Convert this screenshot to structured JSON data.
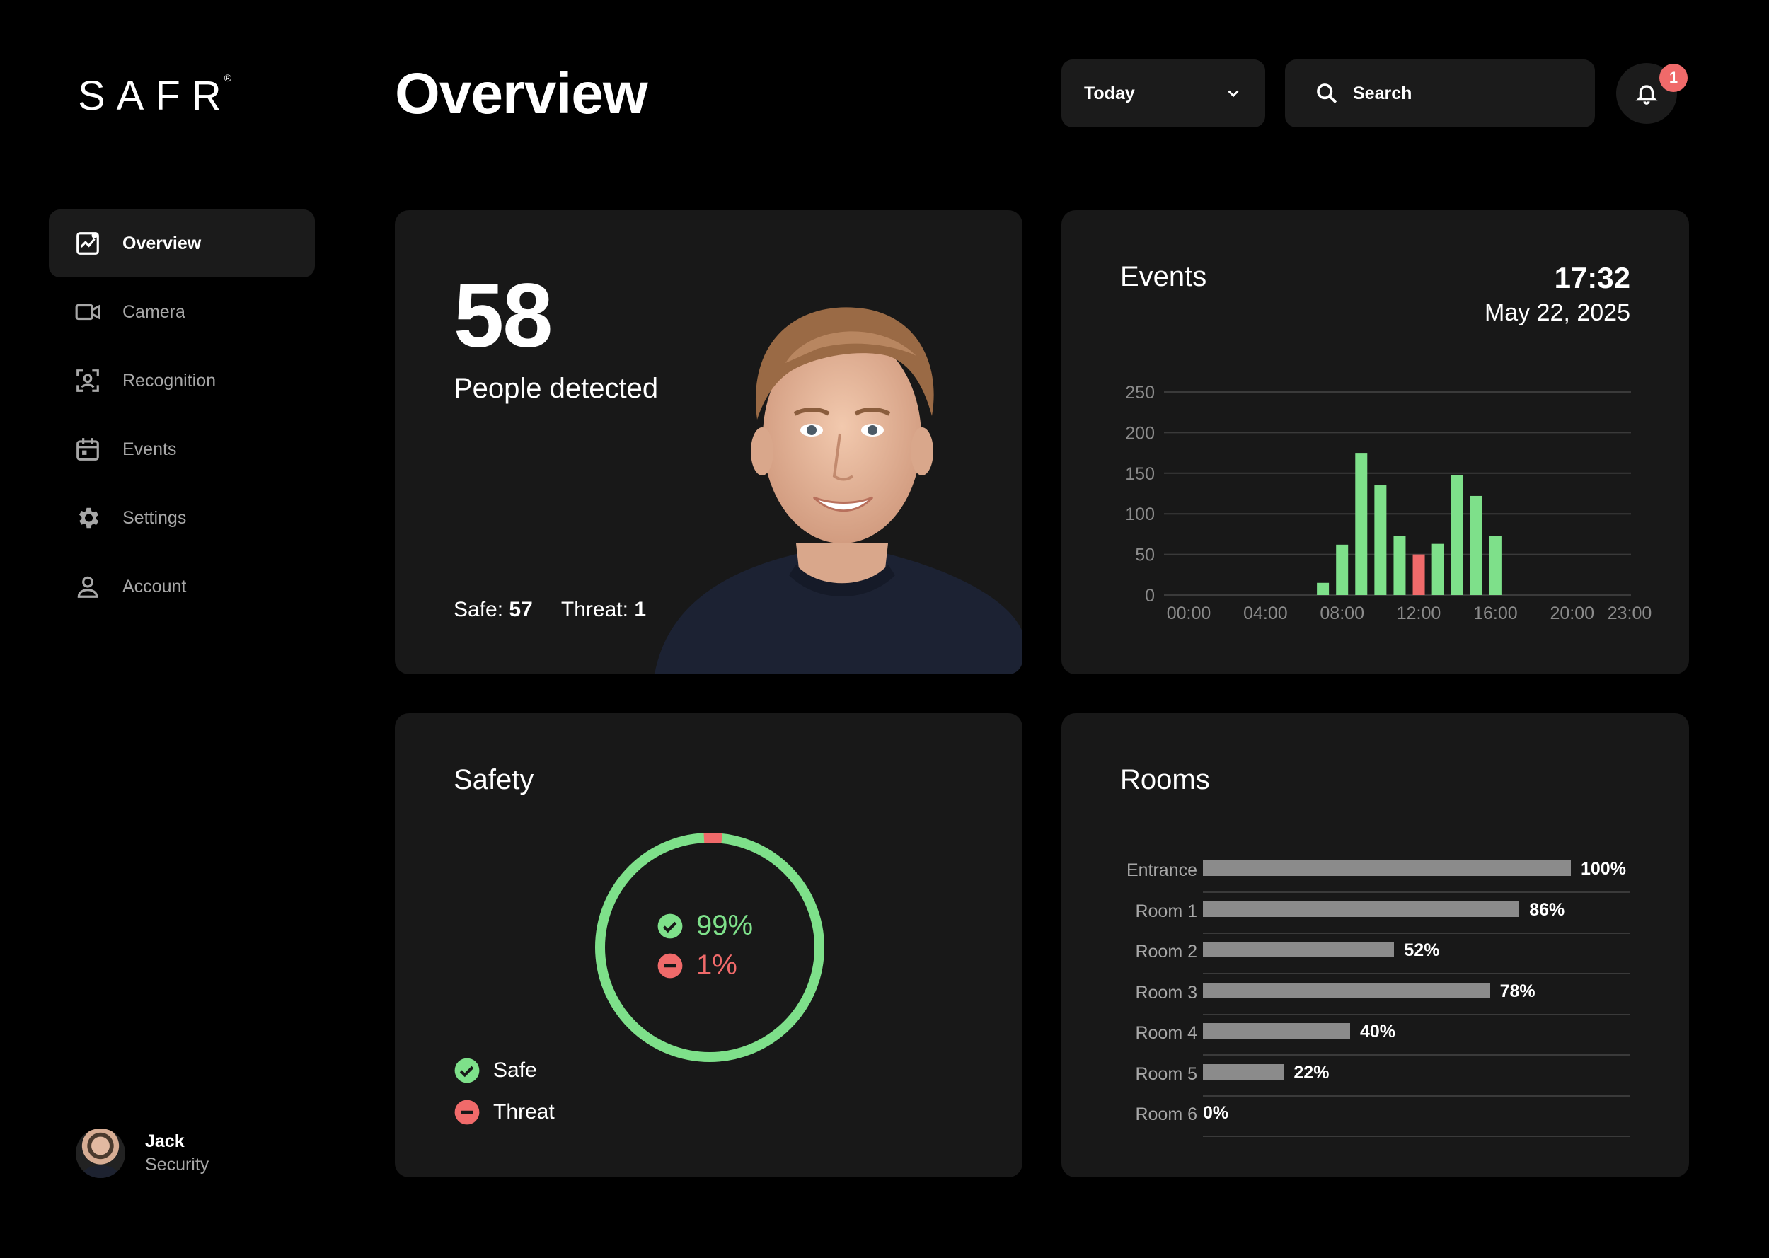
{
  "brand": {
    "logo_text": "SAFR"
  },
  "sidebar": {
    "items": [
      {
        "label": "Overview",
        "icon": "chart-icon",
        "active": true
      },
      {
        "label": "Camera",
        "icon": "camera-icon"
      },
      {
        "label": "Recognition",
        "icon": "face-scan-icon"
      },
      {
        "label": "Events",
        "icon": "calendar-icon"
      },
      {
        "label": "Settings",
        "icon": "gear-icon"
      },
      {
        "label": "Account",
        "icon": "person-icon"
      }
    ],
    "user": {
      "name": "Jack",
      "role": "Security"
    }
  },
  "header": {
    "title": "Overview",
    "period": "Today",
    "search_placeholder": "Search",
    "notifications_count": "1"
  },
  "people": {
    "count": "58",
    "label": "People detected",
    "safe_label": "Safe:",
    "safe_value": "57",
    "threat_label": "Threat:",
    "threat_value": "1"
  },
  "events": {
    "title": "Events",
    "time": "17:32",
    "date": "May 22, 2025"
  },
  "safety": {
    "title": "Safety",
    "safe_pct": "99%",
    "threat_pct": "1%",
    "legend_safe": "Safe",
    "legend_threat": "Threat",
    "safe_fraction": 0.99,
    "threat_fraction": 0.01
  },
  "rooms": {
    "title": "Rooms",
    "items": [
      {
        "name": "Entrance",
        "value": 100,
        "label": "100%"
      },
      {
        "name": "Room 1",
        "value": 86,
        "label": "86%"
      },
      {
        "name": "Room 2",
        "value": 52,
        "label": "52%"
      },
      {
        "name": "Room 3",
        "value": 78,
        "label": "78%"
      },
      {
        "name": "Room 4",
        "value": 40,
        "label": "40%"
      },
      {
        "name": "Room 5",
        "value": 22,
        "label": "22%"
      },
      {
        "name": "Room 6",
        "value": 0,
        "label": "0%"
      }
    ]
  },
  "colors": {
    "safe": "#7ee08a",
    "threat": "#f06a6a",
    "bar": "#8b8b8b",
    "card": "#181818"
  },
  "chart_data": {
    "type": "bar",
    "xticks": [
      "00:00",
      "04:00",
      "08:00",
      "12:00",
      "16:00",
      "20:00",
      "23:00"
    ],
    "yticks": [
      "250",
      "200",
      "150",
      "100",
      "50",
      "0"
    ],
    "ylim": [
      0,
      250
    ],
    "x": [
      7,
      8,
      9,
      10,
      11,
      12,
      13,
      14,
      15,
      16
    ],
    "values": [
      15,
      62,
      175,
      135,
      73,
      50,
      63,
      148,
      122,
      73
    ],
    "threat_index": 5
  }
}
